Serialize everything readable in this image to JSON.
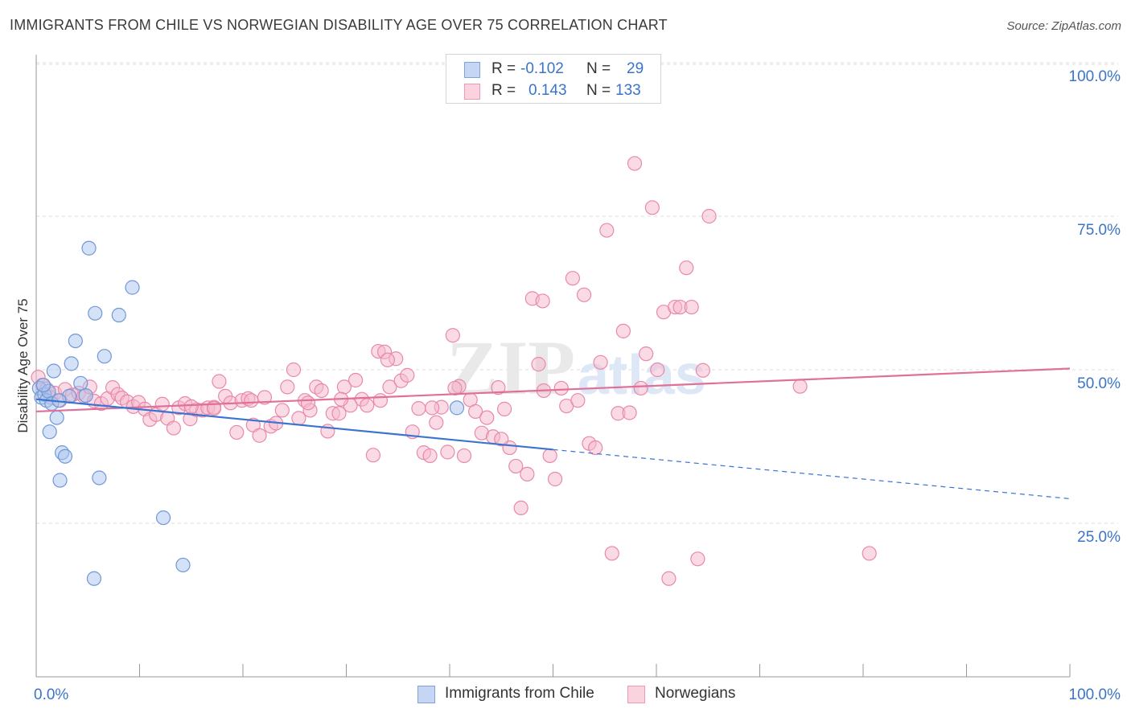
{
  "header": {
    "title": "IMMIGRANTS FROM CHILE VS NORWEGIAN DISABILITY AGE OVER 75 CORRELATION CHART",
    "source": "Source: ZipAtlas.com"
  },
  "watermark": {
    "zip": "ZIP",
    "atlas": "atlas"
  },
  "legend": {
    "rows": [
      {
        "r_label": "R =",
        "r_value": "-0.102",
        "n_label": "N =",
        "n_value": "29"
      },
      {
        "r_label": "R =",
        "r_value": "0.143",
        "n_label": "N =",
        "n_value": "133"
      }
    ]
  },
  "colors": {
    "blue_fill": "#a9c4ee",
    "blue_stroke": "#6f98d8",
    "blue_line": "#3a74d0",
    "pink_fill": "#f5b8cc",
    "pink_stroke": "#e889a9",
    "pink_line": "#e0709a",
    "axis_text": "#3a74c9",
    "grid": "#dcdcdc"
  },
  "chart_data": {
    "type": "scatter",
    "title": "IMMIGRANTS FROM CHILE VS NORWEGIAN DISABILITY AGE OVER 75 CORRELATION CHART",
    "xlabel": "",
    "ylabel": "Disability Age Over 75",
    "xlim": [
      0,
      100
    ],
    "ylim": [
      0,
      105
    ],
    "x_tick_labels": [
      "0.0%",
      "100.0%"
    ],
    "y_ticks": [
      25,
      50,
      75,
      100
    ],
    "y_tick_labels": [
      "25.0%",
      "50.0%",
      "75.0%",
      "100.0%"
    ],
    "grid": "horizontal dashed",
    "legend_position": "top-center and bottom",
    "series": [
      {
        "name": "Immigrants from Chile",
        "color": "#a9c4ee",
        "r": -0.102,
        "n": 29,
        "trend": {
          "x": [
            0,
            50
          ],
          "y": [
            45.2,
            37.0
          ],
          "dashed_to": [
            100,
            29.0
          ]
        },
        "points": [
          [
            0.3,
            47.0
          ],
          [
            0.5,
            45.5
          ],
          [
            0.8,
            46.0
          ],
          [
            1.0,
            45.0
          ],
          [
            1.2,
            46.5
          ],
          [
            1.5,
            44.5
          ],
          [
            1.7,
            49.8
          ],
          [
            2.0,
            42.2
          ],
          [
            2.3,
            32.0
          ],
          [
            2.5,
            36.5
          ],
          [
            2.8,
            35.9
          ],
          [
            3.2,
            45.7
          ],
          [
            3.4,
            51.0
          ],
          [
            3.8,
            54.7
          ],
          [
            4.3,
            47.8
          ],
          [
            4.8,
            45.8
          ],
          [
            5.1,
            69.8
          ],
          [
            5.7,
            59.2
          ],
          [
            6.1,
            32.4
          ],
          [
            6.6,
            52.2
          ],
          [
            8.0,
            58.9
          ],
          [
            9.3,
            63.4
          ],
          [
            12.3,
            25.9
          ],
          [
            5.6,
            16.0
          ],
          [
            14.2,
            18.2
          ],
          [
            40.7,
            43.8
          ],
          [
            1.3,
            39.9
          ],
          [
            0.7,
            47.5
          ],
          [
            2.2,
            45.0
          ]
        ]
      },
      {
        "name": "Norwegians",
        "color": "#f5b8cc",
        "r": 0.143,
        "n": 133,
        "trend": {
          "x": [
            0,
            100
          ],
          "y": [
            43.2,
            50.2
          ]
        },
        "points": [
          [
            0.2,
            48.8
          ],
          [
            0.6,
            47.5
          ],
          [
            1.0,
            46.9
          ],
          [
            1.4,
            45.5
          ],
          [
            1.8,
            46.2
          ],
          [
            2.3,
            45.0
          ],
          [
            2.8,
            46.8
          ],
          [
            3.5,
            45.9
          ],
          [
            4.1,
            46.2
          ],
          [
            4.6,
            45.7
          ],
          [
            5.2,
            47.2
          ],
          [
            5.6,
            44.9
          ],
          [
            6.3,
            44.5
          ],
          [
            6.9,
            45.3
          ],
          [
            7.4,
            47.1
          ],
          [
            7.9,
            46.0
          ],
          [
            8.3,
            45.4
          ],
          [
            8.8,
            44.8
          ],
          [
            9.4,
            44.0
          ],
          [
            9.9,
            44.7
          ],
          [
            10.5,
            43.6
          ],
          [
            11.0,
            41.9
          ],
          [
            11.6,
            42.7
          ],
          [
            12.2,
            44.4
          ],
          [
            12.7,
            42.1
          ],
          [
            13.3,
            40.5
          ],
          [
            13.8,
            43.8
          ],
          [
            14.4,
            44.5
          ],
          [
            14.9,
            42.0
          ],
          [
            15.5,
            43.5
          ],
          [
            16.1,
            43.4
          ],
          [
            16.6,
            43.8
          ],
          [
            17.2,
            43.9
          ],
          [
            17.7,
            48.1
          ],
          [
            18.3,
            45.7
          ],
          [
            18.8,
            44.6
          ],
          [
            19.4,
            39.8
          ],
          [
            19.9,
            45.0
          ],
          [
            20.5,
            45.3
          ],
          [
            21.0,
            41.0
          ],
          [
            21.6,
            39.3
          ],
          [
            22.1,
            45.5
          ],
          [
            22.7,
            40.8
          ],
          [
            23.2,
            41.3
          ],
          [
            23.8,
            43.4
          ],
          [
            24.3,
            47.2
          ],
          [
            24.9,
            50.0
          ],
          [
            25.4,
            42.1
          ],
          [
            26.0,
            45.0
          ],
          [
            26.5,
            43.4
          ],
          [
            27.1,
            47.2
          ],
          [
            27.6,
            46.6
          ],
          [
            28.2,
            40.0
          ],
          [
            28.7,
            42.9
          ],
          [
            29.3,
            42.9
          ],
          [
            29.8,
            47.2
          ],
          [
            30.4,
            44.2
          ],
          [
            30.9,
            48.3
          ],
          [
            31.5,
            45.2
          ],
          [
            32.0,
            44.2
          ],
          [
            32.6,
            36.1
          ],
          [
            33.1,
            53.0
          ],
          [
            33.7,
            52.9
          ],
          [
            34.2,
            47.2
          ],
          [
            34.8,
            51.8
          ],
          [
            35.3,
            48.2
          ],
          [
            35.9,
            49.1
          ],
          [
            36.4,
            39.9
          ],
          [
            37.0,
            43.7
          ],
          [
            37.5,
            36.5
          ],
          [
            38.1,
            36.0
          ],
          [
            38.7,
            41.4
          ],
          [
            39.2,
            43.9
          ],
          [
            39.8,
            36.6
          ],
          [
            40.3,
            55.6
          ],
          [
            40.9,
            47.3
          ],
          [
            41.4,
            36.0
          ],
          [
            42.0,
            45.1
          ],
          [
            42.5,
            43.2
          ],
          [
            43.1,
            39.7
          ],
          [
            43.6,
            42.2
          ],
          [
            44.2,
            39.1
          ],
          [
            44.7,
            47.1
          ],
          [
            45.3,
            43.6
          ],
          [
            45.8,
            37.3
          ],
          [
            46.4,
            34.3
          ],
          [
            46.9,
            27.5
          ],
          [
            47.5,
            33.0
          ],
          [
            48.0,
            61.6
          ],
          [
            48.6,
            50.9
          ],
          [
            49.1,
            46.6
          ],
          [
            49.7,
            36.0
          ],
          [
            50.2,
            32.2
          ],
          [
            50.8,
            47.0
          ],
          [
            51.3,
            44.1
          ],
          [
            51.9,
            64.9
          ],
          [
            52.4,
            45.0
          ],
          [
            53.0,
            62.2
          ],
          [
            53.5,
            38.0
          ],
          [
            54.1,
            37.3
          ],
          [
            54.6,
            51.2
          ],
          [
            55.2,
            72.7
          ],
          [
            55.7,
            20.1
          ],
          [
            56.3,
            42.9
          ],
          [
            56.8,
            56.3
          ],
          [
            57.4,
            43.0
          ],
          [
            57.9,
            83.6
          ],
          [
            58.5,
            47.0
          ],
          [
            59.0,
            52.6
          ],
          [
            59.6,
            76.4
          ],
          [
            60.1,
            50.0
          ],
          [
            60.7,
            59.4
          ],
          [
            61.2,
            16.0
          ],
          [
            61.8,
            60.2
          ],
          [
            62.3,
            60.2
          ],
          [
            62.9,
            66.6
          ],
          [
            63.4,
            60.2
          ],
          [
            64.0,
            19.2
          ],
          [
            64.5,
            49.9
          ],
          [
            65.1,
            75.0
          ],
          [
            80.6,
            20.1
          ],
          [
            73.9,
            47.3
          ],
          [
            26.3,
            44.6
          ],
          [
            17.2,
            43.7
          ],
          [
            34.0,
            51.6
          ],
          [
            49.0,
            61.2
          ],
          [
            40.5,
            47.0
          ],
          [
            38.3,
            43.8
          ],
          [
            45.0,
            38.7
          ],
          [
            33.3,
            45.0
          ],
          [
            29.5,
            45.2
          ],
          [
            20.8,
            45.0
          ],
          [
            15.0,
            44.0
          ]
        ]
      }
    ]
  }
}
